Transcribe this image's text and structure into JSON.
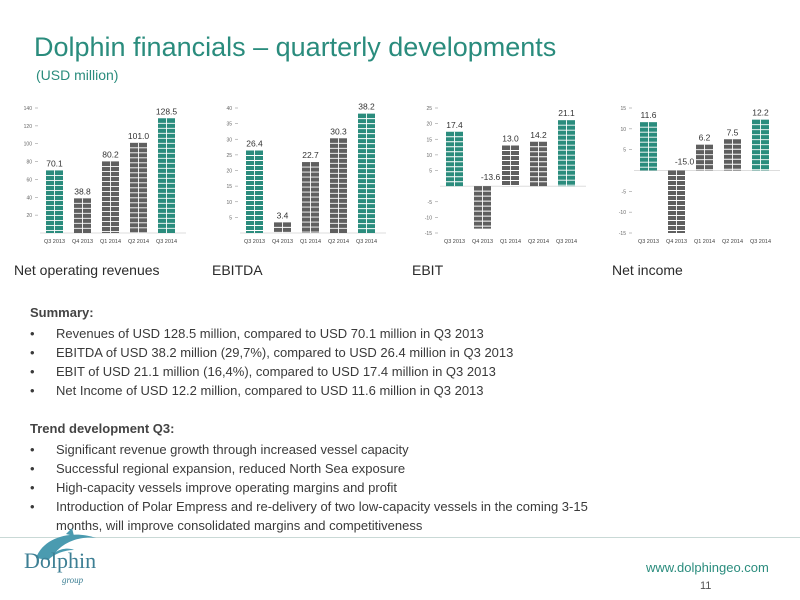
{
  "header": {
    "title": "Dolphin financials – quarterly developments",
    "subtitle": "(USD million)"
  },
  "colors": {
    "accent": "#2a8c7d",
    "negative": "#5f5f5f"
  },
  "chart_data": [
    {
      "type": "bar",
      "title": "Net operating revenues",
      "categories": [
        "Q3 2013",
        "Q4 2013",
        "Q1 2014",
        "Q2 2014",
        "Q3 2014"
      ],
      "values": [
        70.1,
        38.8,
        80.2,
        101.0,
        128.5
      ],
      "labels": [
        "70.1",
        "38.8",
        "80.2",
        "101.0",
        "128.5"
      ],
      "highlight": [
        true,
        false,
        false,
        false,
        true
      ],
      "ylim": [
        0,
        140
      ],
      "yticks": [
        20,
        40,
        60,
        80,
        100,
        120,
        140
      ]
    },
    {
      "type": "bar",
      "title": "EBITDA",
      "categories": [
        "Q3 2013",
        "Q4 2013",
        "Q1 2014",
        "Q2 2014",
        "Q3 2014"
      ],
      "values": [
        26.4,
        3.4,
        22.7,
        30.3,
        38.2
      ],
      "labels": [
        "26.4",
        "3.4",
        "22.7",
        "30.3",
        "38.2"
      ],
      "highlight": [
        true,
        false,
        false,
        false,
        true
      ],
      "ylim": [
        0,
        40
      ],
      "yticks": [
        5,
        10,
        15,
        20,
        25,
        30,
        35,
        40
      ]
    },
    {
      "type": "bar",
      "title": "EBIT",
      "categories": [
        "Q3 2013",
        "Q4 2013",
        "Q1 2014",
        "Q2 2014",
        "Q3 2014"
      ],
      "values": [
        17.4,
        -13.6,
        13.0,
        14.2,
        21.1
      ],
      "labels": [
        "17.4",
        "-13.6",
        "13.0",
        "14.2",
        "21.1"
      ],
      "highlight": [
        true,
        false,
        false,
        false,
        true
      ],
      "ylim": [
        -15,
        25
      ],
      "yticks": [
        -15,
        -10,
        -5,
        5,
        10,
        15,
        20,
        25
      ]
    },
    {
      "type": "bar",
      "title": "Net income",
      "categories": [
        "Q3 2013",
        "Q4 2013",
        "Q1 2014",
        "Q2 2014",
        "Q3 2014"
      ],
      "values": [
        11.6,
        -15.0,
        6.2,
        7.5,
        12.2
      ],
      "labels": [
        "11.6",
        "-15.0",
        "6.2",
        "7.5",
        "12.2"
      ],
      "highlight": [
        true,
        false,
        false,
        false,
        true
      ],
      "ylim": [
        -15,
        15
      ],
      "yticks": [
        -15,
        -10,
        -5,
        5,
        10,
        15
      ]
    }
  ],
  "summary": {
    "heading": "Summary:",
    "items": [
      "Revenues of USD 128.5 million, compared to USD 70.1 million in Q3 2013",
      "EBITDA of USD 38.2 million (29,7%), compared to USD 26.4 million in Q3 2013",
      "EBIT of USD 21.1 million (16,4%), compared to USD 17.4 million in Q3 2013",
      "Net Income of USD 12.2 million, compared to USD 11.6 million in Q3 2013"
    ]
  },
  "trend": {
    "heading": "Trend development Q3:",
    "items": [
      "Significant revenue growth  through increased vessel capacity",
      "Successful regional expansion,  reduced  North Sea  exposure",
      "High-capacity vessels improve  operating margins and  profit",
      "Introduction of  Polar Empress and re-delivery of two low-capacity vessels in the coming 3-15 months, will  improve consolidated margins and competitiveness"
    ]
  },
  "footer": {
    "logo_text": "Dolphin",
    "logo_sub": "group",
    "website": "www.dolphingeo.com",
    "page_number": "11"
  }
}
